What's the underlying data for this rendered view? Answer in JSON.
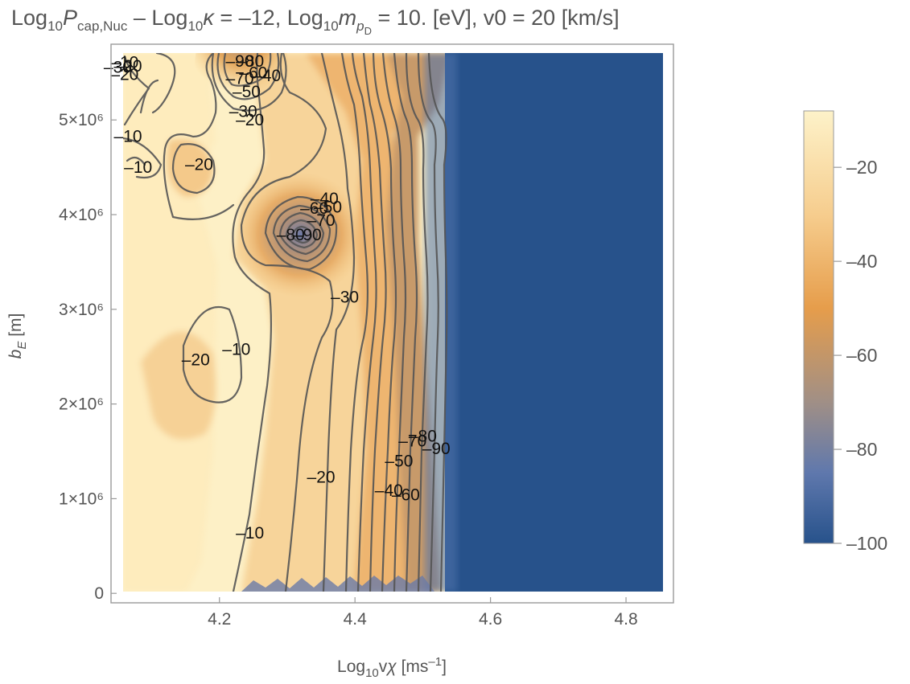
{
  "chart_data": {
    "type": "contour",
    "title_parts": {
      "a": "Log",
      "a_sub": "10",
      "b": "P",
      "b_sub": "cap,Nuc",
      "c": " – Log",
      "c_sub": "10",
      "d": "κ",
      "e": " = –12, Log",
      "e_sub": "10",
      "f": "m",
      "f_sub": "p",
      "f_subsub": "D",
      "g": " = 10. [eV], v0 = 20 [km/s]"
    },
    "xlabel": "Log₁₀vχ [ms⁻¹]",
    "ylabel": "b_E [m]",
    "xlabel_parts": {
      "a": "Log",
      "a_sub": "10",
      "b": "v",
      "c": "χ",
      "d": " [ms",
      "d_sup": "–1",
      "e": "]"
    },
    "ylabel_parts": {
      "a": "b",
      "a_sub": "E",
      "b": " [m]"
    },
    "xlim": [
      4.04,
      4.87
    ],
    "ylim": [
      -100000,
      5800000
    ],
    "x_ticks": [
      {
        "value": 4.2,
        "label": "4.2"
      },
      {
        "value": 4.4,
        "label": "4.4"
      },
      {
        "value": 4.6,
        "label": "4.6"
      },
      {
        "value": 4.8,
        "label": "4.8"
      }
    ],
    "y_ticks": [
      {
        "value": 0,
        "label": "0"
      },
      {
        "value": 1000000,
        "label": "1×10⁶"
      },
      {
        "value": 2000000,
        "label": "2×10⁶"
      },
      {
        "value": 3000000,
        "label": "3×10⁶"
      },
      {
        "value": 4000000,
        "label": "4×10⁶"
      },
      {
        "value": 5000000,
        "label": "5×10⁶"
      }
    ],
    "colorbar": {
      "range": [
        -100,
        -8
      ],
      "ticks": [
        {
          "value": -20,
          "label": "–20"
        },
        {
          "value": -40,
          "label": "–40"
        },
        {
          "value": -60,
          "label": "–60"
        },
        {
          "value": -80,
          "label": "–80"
        },
        {
          "value": -100,
          "label": "–100"
        }
      ],
      "stops": [
        {
          "value": -8,
          "color": "#fdf2c9"
        },
        {
          "value": -30,
          "color": "#f6cd8e"
        },
        {
          "value": -50,
          "color": "#e69d4b"
        },
        {
          "value": -70,
          "color": "#a08f86"
        },
        {
          "value": -85,
          "color": "#5f78ad"
        },
        {
          "value": -100,
          "color": "#27528b"
        }
      ]
    },
    "contour_labels": [
      {
        "x": 4.06,
        "y": 5610000,
        "text": "–10"
      },
      {
        "x": 4.065,
        "y": 5570000,
        "text": "–20"
      },
      {
        "x": 4.05,
        "y": 5560000,
        "text": "–30"
      },
      {
        "x": 4.06,
        "y": 5480000,
        "text": "–20"
      },
      {
        "x": 4.23,
        "y": 5620000,
        "text": "–90"
      },
      {
        "x": 4.245,
        "y": 5620000,
        "text": "–80"
      },
      {
        "x": 4.25,
        "y": 5500000,
        "text": "–60"
      },
      {
        "x": 4.27,
        "y": 5470000,
        "text": "–40"
      },
      {
        "x": 4.23,
        "y": 5440000,
        "text": "–70"
      },
      {
        "x": 4.24,
        "y": 5300000,
        "text": "–50"
      },
      {
        "x": 4.235,
        "y": 5090000,
        "text": "–30"
      },
      {
        "x": 4.245,
        "y": 5000000,
        "text": "–20"
      },
      {
        "x": 4.065,
        "y": 4830000,
        "text": "–10"
      },
      {
        "x": 4.08,
        "y": 4500000,
        "text": "–10"
      },
      {
        "x": 4.17,
        "y": 4530000,
        "text": "–20"
      },
      {
        "x": 4.355,
        "y": 4170000,
        "text": "–40"
      },
      {
        "x": 4.34,
        "y": 4070000,
        "text": "–60"
      },
      {
        "x": 4.36,
        "y": 4080000,
        "text": "–50"
      },
      {
        "x": 4.35,
        "y": 3940000,
        "text": "–70"
      },
      {
        "x": 4.305,
        "y": 3790000,
        "text": "–80"
      },
      {
        "x": 4.33,
        "y": 3790000,
        "text": "–90"
      },
      {
        "x": 4.385,
        "y": 3130000,
        "text": "–30"
      },
      {
        "x": 4.165,
        "y": 2470000,
        "text": "–20"
      },
      {
        "x": 4.225,
        "y": 2580000,
        "text": "–10"
      },
      {
        "x": 4.5,
        "y": 1660000,
        "text": "–80"
      },
      {
        "x": 4.485,
        "y": 1610000,
        "text": "–70"
      },
      {
        "x": 4.52,
        "y": 1530000,
        "text": "–90"
      },
      {
        "x": 4.465,
        "y": 1400000,
        "text": "–50"
      },
      {
        "x": 4.35,
        "y": 1230000,
        "text": "–20"
      },
      {
        "x": 4.45,
        "y": 1090000,
        "text": "–40"
      },
      {
        "x": 4.475,
        "y": 1040000,
        "text": "–60"
      },
      {
        "x": 4.245,
        "y": 640000,
        "text": "–10"
      }
    ]
  }
}
